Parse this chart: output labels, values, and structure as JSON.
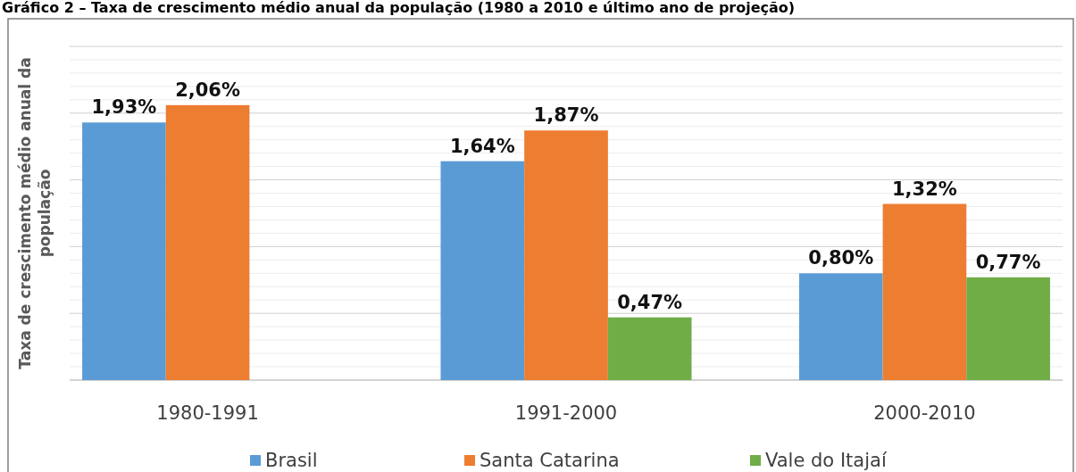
{
  "chart_data": {
    "type": "bar",
    "title": "Gráfico 2 – Taxa de crescimento médio anual da população (1980 a 2010 e último ano de projeção)",
    "ylabel": "Taxa de crescimento médio anual da população",
    "categories": [
      "1980-1991",
      "1991-2000",
      "2000-2010"
    ],
    "series": [
      {
        "name": "Brasil",
        "color": "#5b9bd5",
        "values": [
          1.93,
          1.64,
          0.8
        ],
        "value_labels": [
          "1,93%",
          "1,64%",
          "0,80%"
        ]
      },
      {
        "name": "Santa Catarina",
        "color": "#ed7d31",
        "values": [
          2.06,
          1.87,
          1.32
        ],
        "value_labels": [
          "2,06%",
          "1,87%",
          "1,32%"
        ]
      },
      {
        "name": "Vale do Itajaí",
        "color": "#70ad47",
        "values": [
          null,
          0.47,
          0.77
        ],
        "value_labels": [
          null,
          "0,47%",
          "0,77%"
        ]
      }
    ],
    "ylim": [
      0,
      2.5
    ],
    "yticks": [
      {
        "value": 0,
        "label": null
      },
      {
        "value": 0.1,
        "label": null
      },
      {
        "value": 0.2,
        "label": null
      },
      {
        "value": 0.3,
        "label": null
      },
      {
        "value": 0.4,
        "label": null
      },
      {
        "value": 0.5,
        "label": null
      },
      {
        "value": 0.6,
        "label": null
      },
      {
        "value": 0.7,
        "label": null
      },
      {
        "value": 0.8,
        "label": null
      },
      {
        "value": 0.9,
        "label": null
      },
      {
        "value": 1.0,
        "label": null
      },
      {
        "value": 1.1,
        "label": null
      },
      {
        "value": 1.2,
        "label": null
      },
      {
        "value": 1.3,
        "label": null
      },
      {
        "value": 1.4,
        "label": null
      },
      {
        "value": 1.5,
        "label": null
      },
      {
        "value": 1.6,
        "label": null
      },
      {
        "value": 1.7,
        "label": null
      },
      {
        "value": 1.8,
        "label": null
      },
      {
        "value": 1.9,
        "label": null
      },
      {
        "value": 2.0,
        "label": null
      },
      {
        "value": 2.1,
        "label": null
      },
      {
        "value": 2.2,
        "label": null
      },
      {
        "value": 2.3,
        "label": null
      },
      {
        "value": 2.4,
        "label": null
      },
      {
        "value": 2.5,
        "label": null
      }
    ],
    "tick_labels": "x",
    "grid": "y",
    "legend": "bottom"
  }
}
